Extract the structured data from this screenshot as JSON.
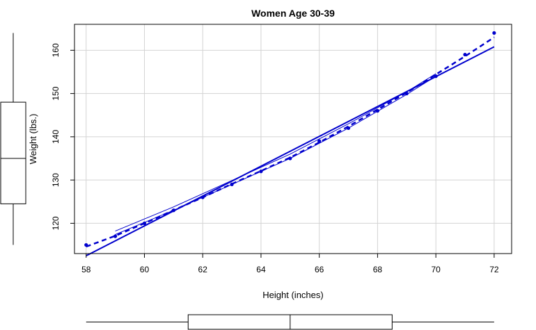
{
  "chart_data": {
    "type": "scatter",
    "title": "Women Age 30-39",
    "xlabel": "Height (inches)",
    "ylabel": "Weight (lbs.)",
    "xlim": [
      57.6,
      72.6
    ],
    "ylim": [
      113,
      166
    ],
    "x_ticks": [
      58,
      60,
      62,
      64,
      66,
      68,
      70,
      72
    ],
    "y_ticks": [
      120,
      130,
      140,
      150,
      160
    ],
    "grid": true,
    "point_color": "#0000CD",
    "line_color": "#0000CD",
    "boxplot_color": "#000000",
    "points": [
      {
        "x": 58,
        "y": 115
      },
      {
        "x": 59,
        "y": 117
      },
      {
        "x": 60,
        "y": 120
      },
      {
        "x": 61,
        "y": 123
      },
      {
        "x": 62,
        "y": 126
      },
      {
        "x": 63,
        "y": 129
      },
      {
        "x": 64,
        "y": 132
      },
      {
        "x": 65,
        "y": 135
      },
      {
        "x": 66,
        "y": 139
      },
      {
        "x": 67,
        "y": 142
      },
      {
        "x": 68,
        "y": 146
      },
      {
        "x": 69,
        "y": 150
      },
      {
        "x": 70,
        "y": 154
      },
      {
        "x": 71,
        "y": 159
      },
      {
        "x": 72,
        "y": 164
      }
    ],
    "regression_line": {
      "x0": 58,
      "y0": 112.5,
      "x1": 72,
      "y1": 160.8
    },
    "smooth_fit": [
      {
        "x": 58,
        "y": 114.6
      },
      {
        "x": 59,
        "y": 117.1
      },
      {
        "x": 60,
        "y": 120.0
      },
      {
        "x": 61,
        "y": 123.0
      },
      {
        "x": 62,
        "y": 126.0
      },
      {
        "x": 63,
        "y": 129.1
      },
      {
        "x": 64,
        "y": 132.1
      },
      {
        "x": 65,
        "y": 135.2
      },
      {
        "x": 66,
        "y": 138.7
      },
      {
        "x": 67,
        "y": 142.4
      },
      {
        "x": 68,
        "y": 146.3
      },
      {
        "x": 69,
        "y": 150.2
      },
      {
        "x": 70,
        "y": 154.4
      },
      {
        "x": 71,
        "y": 158.6
      },
      {
        "x": 72,
        "y": 163.0
      }
    ],
    "spread_upper": [
      {
        "x": 59,
        "y": 118.2
      },
      {
        "x": 61,
        "y": 123.8
      },
      {
        "x": 63,
        "y": 129.9
      },
      {
        "x": 65,
        "y": 136.0
      },
      {
        "x": 67,
        "y": 143.0
      },
      {
        "x": 69,
        "y": 150.4
      },
      {
        "x": 70,
        "y": 154.6
      }
    ],
    "spread_lower": [
      {
        "x": 59,
        "y": 117.4
      },
      {
        "x": 61,
        "y": 123.0
      },
      {
        "x": 63,
        "y": 129.0
      },
      {
        "x": 65,
        "y": 135.0
      },
      {
        "x": 67,
        "y": 142.0
      },
      {
        "x": 69,
        "y": 149.8
      },
      {
        "x": 70,
        "y": 154.0
      }
    ],
    "x_boxplot": {
      "min": 58,
      "q1": 61.5,
      "median": 65,
      "q3": 68.5,
      "max": 72
    },
    "y_boxplot": {
      "min": 115,
      "q1": 124.5,
      "median": 135,
      "q3": 148,
      "max": 164
    }
  }
}
